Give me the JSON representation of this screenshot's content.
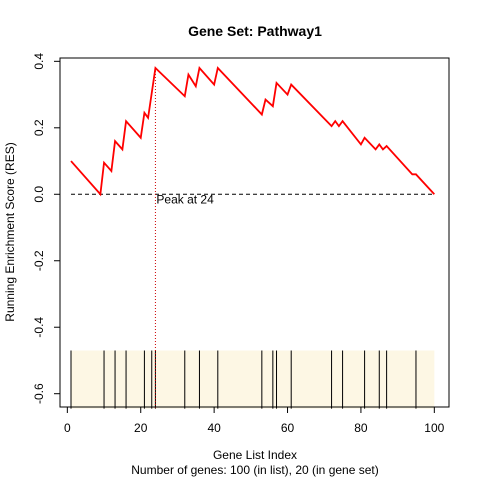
{
  "chart_data": {
    "type": "line",
    "title": "Gene Set:  Pathway1",
    "xlabel": "Gene List Index",
    "ylabel": "Running Enrichment Score (RES)",
    "subtitle": "Number of genes: 100 (in list), 20 (in gene set)",
    "xlim": [
      -2,
      104
    ],
    "ylim": [
      -0.64,
      0.41
    ],
    "x_ticks": [
      0,
      20,
      40,
      60,
      80,
      100
    ],
    "y_ticks": [
      -0.6,
      -0.4,
      -0.2,
      0.0,
      0.2,
      0.4
    ],
    "y_tick_labels": [
      "-0.6",
      "-0.4",
      "-0.2",
      "0.0",
      "0.2",
      "0.4"
    ],
    "series": [
      {
        "color": "#ff0000",
        "x": [
          1,
          9,
          10,
          12,
          13,
          15,
          16,
          20,
          21,
          22,
          24,
          32,
          33,
          35,
          36,
          40,
          41,
          53,
          54,
          56,
          57,
          60,
          61,
          72,
          73,
          74,
          75,
          80,
          81,
          84,
          85,
          86,
          87,
          94,
          95,
          100
        ],
        "y": [
          0.1,
          0.0,
          0.095,
          0.07,
          0.16,
          0.135,
          0.22,
          0.17,
          0.245,
          0.23,
          0.38,
          0.295,
          0.36,
          0.325,
          0.38,
          0.33,
          0.38,
          0.24,
          0.285,
          0.265,
          0.335,
          0.3,
          0.33,
          0.205,
          0.22,
          0.205,
          0.22,
          0.15,
          0.17,
          0.135,
          0.15,
          0.135,
          0.145,
          0.06,
          0.06,
          0.0
        ]
      }
    ],
    "baseline": 0.0,
    "peak": {
      "x": 24,
      "label": "Peak at 24",
      "color": "#cc0000"
    },
    "gene_set_hits": {
      "positions": [
        1,
        10,
        13,
        16,
        21,
        23,
        24,
        32,
        36,
        41,
        53,
        56,
        57,
        61,
        72,
        75,
        81,
        85,
        87,
        95
      ],
      "band_y": [
        -0.645,
        -0.47
      ],
      "band_color": "#fdf7e4",
      "line_color": "#000000"
    },
    "grid": false,
    "legend": "none"
  }
}
